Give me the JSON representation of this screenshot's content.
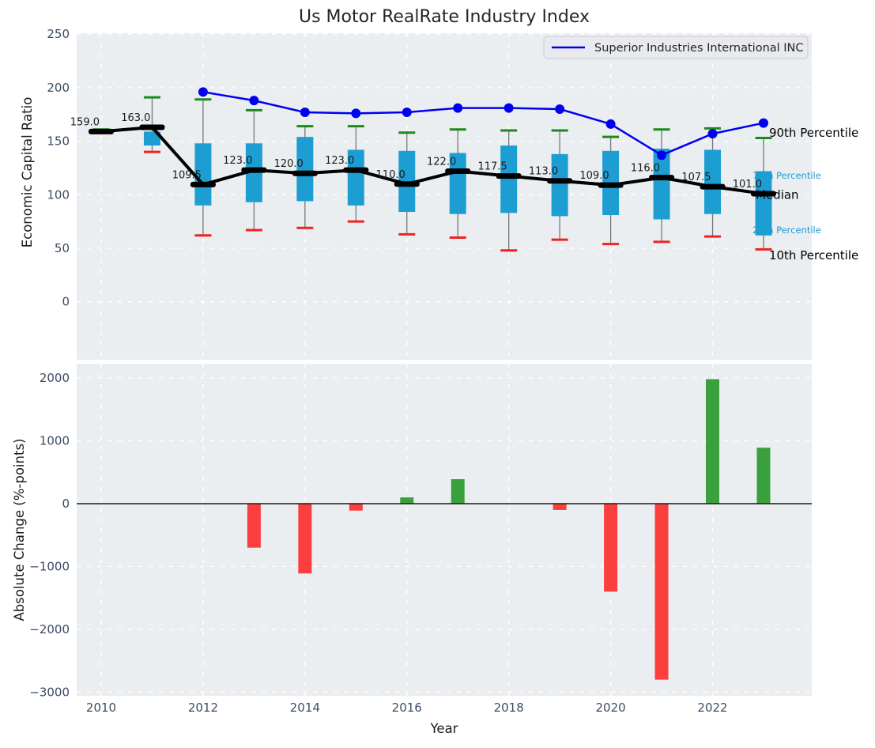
{
  "title": "Us Motor RealRate Industry Index",
  "legend": {
    "label": "Superior Industries International INC"
  },
  "annotations": {
    "p90": "90th Percentile",
    "p75": "75th Percentile",
    "median": "Median",
    "p25": "25th Percentile",
    "p10": "10th Percentile"
  },
  "colors": {
    "company_line": "#0000ee",
    "median_line": "#000000",
    "box_fill": "#1d9ed3",
    "p90_cap": "#1c8a1c",
    "p10_cap": "#ee2222",
    "whisker": "#777777",
    "bar_positive": "#3aa03c",
    "bar_negative": "#fb3e3e",
    "plot_bg": "#ebeef1",
    "grid": "#ffffff",
    "tick_text": "#3e4c63",
    "annotation_cyan": "#1d9ed3",
    "text_dark": "#262626"
  },
  "chart_data": [
    {
      "type": "boxplot+line",
      "title": "Us Motor RealRate Industry Index",
      "ylabel": "Economic Capital Ratio",
      "ylim": [
        -54,
        251
      ],
      "grid": true,
      "legend_position": "upper right",
      "years": [
        2010,
        2011,
        2012,
        2013,
        2014,
        2015,
        2016,
        2017,
        2018,
        2019,
        2020,
        2021,
        2022,
        2023
      ],
      "series": [
        {
          "name": "Superior Industries International INC",
          "role": "company_line",
          "values": [
            null,
            null,
            196,
            188,
            177,
            176,
            177,
            181,
            181,
            180,
            166,
            137,
            157,
            167
          ]
        },
        {
          "name": "Median",
          "role": "median_line",
          "values": [
            159,
            163,
            109.5,
            123,
            120,
            123,
            110,
            122,
            117.5,
            113,
            109,
            116,
            107.5,
            101
          ]
        },
        {
          "name": "90th Percentile",
          "role": "whisker_top_cap",
          "values": [
            161,
            191,
            189,
            179,
            164,
            164,
            158,
            161,
            160,
            160,
            154,
            161,
            162,
            153
          ]
        },
        {
          "name": "75th Percentile",
          "role": "box_top",
          "values": [
            160.5,
            159,
            148,
            148,
            154,
            142,
            141,
            139,
            146,
            138,
            141,
            143,
            142,
            122
          ]
        },
        {
          "name": "25th Percentile",
          "role": "box_bottom",
          "values": [
            157.5,
            146,
            90,
            93,
            94,
            90,
            84,
            82,
            83,
            80,
            81,
            77,
            82,
            62
          ]
        },
        {
          "name": "10th Percentile",
          "role": "whisker_bottom_cap",
          "values": [
            158,
            140,
            62,
            67,
            69,
            75,
            63,
            60,
            48,
            58,
            54,
            56,
            61,
            49
          ]
        }
      ],
      "median_point_labels": [
        "159.0",
        "163.0",
        "109.5",
        "123.0",
        "120.0",
        "123.0",
        "110.0",
        "122.0",
        "117.5",
        "113.0",
        "109.0",
        "116.0",
        "107.5",
        "101.0"
      ],
      "yticks": {
        "values": [
          250,
          200,
          150,
          100,
          50,
          0
        ],
        "labels": [
          "250",
          "200",
          "150",
          "100",
          "50",
          "0"
        ]
      },
      "xticks": {
        "values": [
          2010,
          2012,
          2014,
          2016,
          2018,
          2020,
          2022
        ],
        "labels": [
          "2010",
          "2012",
          "2014",
          "2016",
          "2018",
          "2020",
          "2022"
        ]
      }
    },
    {
      "type": "bar",
      "ylabel": "Absolute Change (%-points)",
      "xlabel": "Year",
      "ylim": [
        -3050,
        2230
      ],
      "grid": true,
      "x": [
        2010,
        2011,
        2012,
        2013,
        2014,
        2015,
        2016,
        2017,
        2018,
        2019,
        2020,
        2021,
        2022,
        2023
      ],
      "values": [
        null,
        null,
        null,
        -700,
        -1110,
        -110,
        100,
        390,
        null,
        -100,
        -1400,
        -2800,
        1980,
        890
      ],
      "yticks": {
        "values": [
          2000,
          1000,
          0,
          -1000,
          -2000,
          -3000
        ],
        "labels": [
          "2000",
          "1000",
          "0",
          "−1000",
          "−2000",
          "−3000"
        ]
      },
      "xticks": {
        "values": [
          2010,
          2012,
          2014,
          2016,
          2018,
          2020,
          2022
        ],
        "labels": [
          "2010",
          "2012",
          "2014",
          "2016",
          "2018",
          "2020",
          "2022"
        ]
      }
    }
  ]
}
